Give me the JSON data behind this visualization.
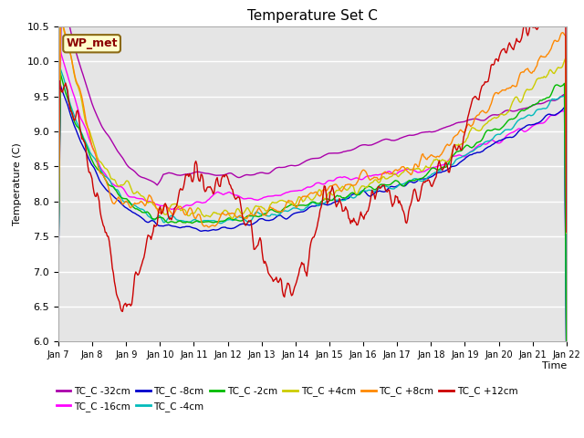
{
  "title": "Temperature Set C",
  "xlabel": "Time",
  "ylabel": "Temperature (C)",
  "ylim": [
    6.0,
    10.5
  ],
  "background_color": "#e5e5e5",
  "series_order": [
    "TC_C -32cm",
    "TC_C -16cm",
    "TC_C -8cm",
    "TC_C -4cm",
    "TC_C -2cm",
    "TC_C +4cm",
    "TC_C +8cm",
    "TC_C +12cm"
  ],
  "series": {
    "TC_C -32cm": {
      "color": "#aa00aa",
      "lw": 1.0
    },
    "TC_C -16cm": {
      "color": "#ff00ff",
      "lw": 1.0
    },
    "TC_C -8cm": {
      "color": "#0000cc",
      "lw": 1.0
    },
    "TC_C -4cm": {
      "color": "#00bbbb",
      "lw": 1.0
    },
    "TC_C -2cm": {
      "color": "#00bb00",
      "lw": 1.0
    },
    "TC_C +4cm": {
      "color": "#cccc00",
      "lw": 1.0
    },
    "TC_C +8cm": {
      "color": "#ff8800",
      "lw": 1.0
    },
    "TC_C +12cm": {
      "color": "#cc0000",
      "lw": 1.0
    }
  },
  "xtick_labels": [
    "Jan 7",
    "Jan 8",
    "Jan 9",
    "Jan 10",
    "Jan 11",
    "Jan 12",
    "Jan 13",
    "Jan 14",
    "Jan 15",
    "Jan 16",
    "Jan 17",
    "Jan 18",
    "Jan 19",
    "Jan 20",
    "Jan 21",
    "Jan 22"
  ],
  "wp_met_label": "WP_met",
  "legend_ncol": 6
}
